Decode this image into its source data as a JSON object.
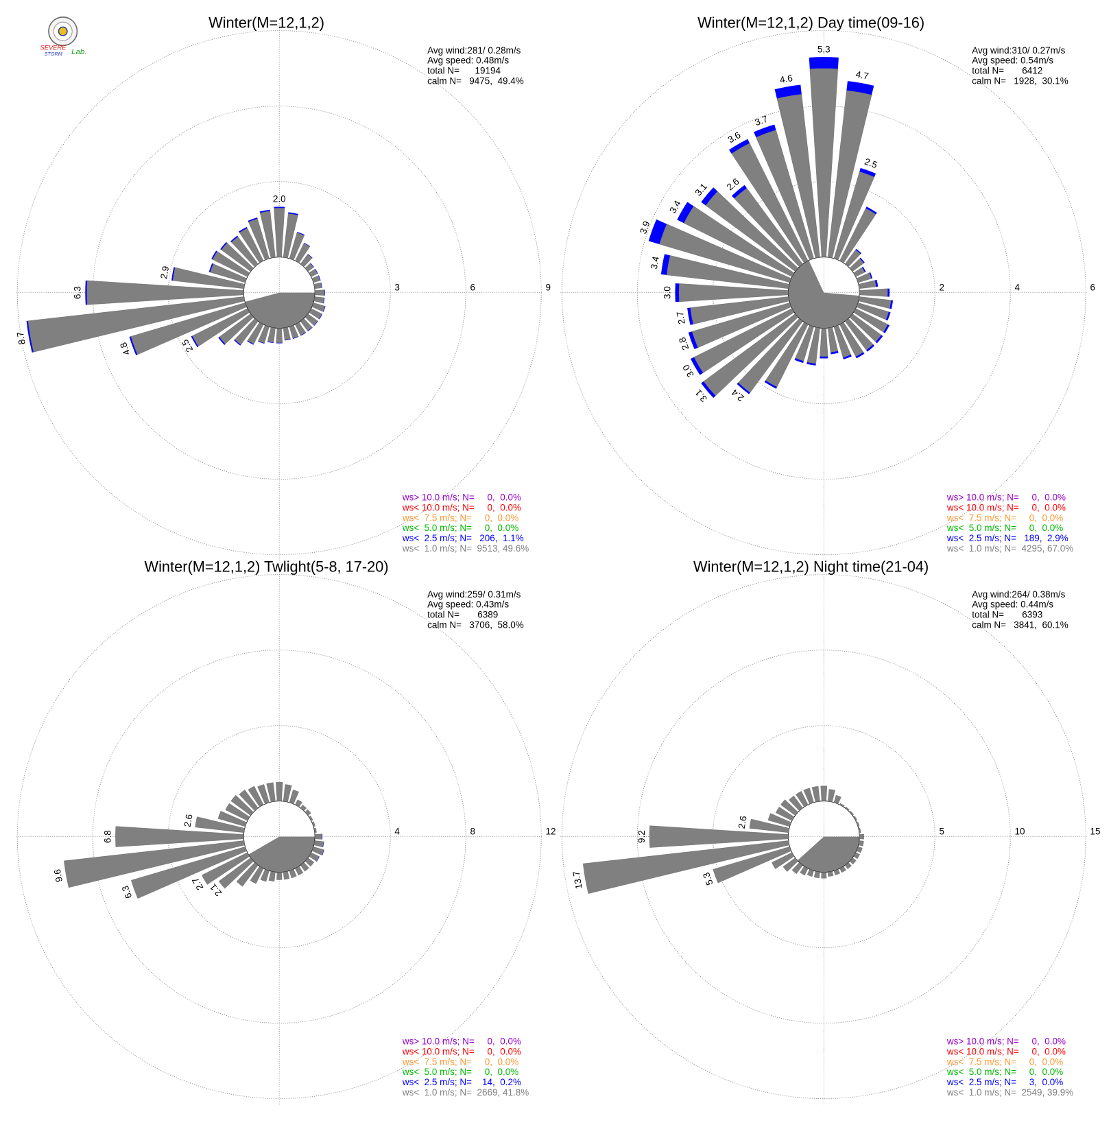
{
  "logo": {
    "line1": "SEVERE",
    "line2": "STORM",
    "line3": "Lab."
  },
  "chart_data": [
    {
      "type": "polar",
      "title": "Winter(M=12,1,2)",
      "directions": [
        0,
        10,
        20,
        30,
        40,
        50,
        60,
        70,
        80,
        90,
        100,
        110,
        120,
        130,
        140,
        150,
        160,
        170,
        180,
        190,
        200,
        210,
        220,
        230,
        240,
        250,
        260,
        270,
        280,
        290,
        300,
        310,
        320,
        330,
        340,
        350
      ],
      "rlim": [
        0,
        9
      ],
      "rticks": [
        3,
        6,
        9
      ],
      "series": [
        {
          "color": "#808080",
          "values": [
            1.95,
            1.75,
            1.07,
            0.78,
            0.48,
            0.28,
            0.28,
            0.28,
            0.28,
            0.38,
            0.38,
            0.48,
            0.48,
            0.48,
            0.48,
            0.48,
            0.48,
            0.48,
            0.58,
            0.58,
            0.68,
            0.87,
            1.16,
            1.55,
            2.45,
            4.74,
            8.64,
            6.24,
            2.85,
            1.45,
            1.55,
            1.45,
            1.35,
            1.45,
            1.65,
            1.85
          ]
        },
        {
          "color": "#0000ff",
          "values": [
            0.05,
            0.05,
            0.03,
            0.02,
            0.02,
            0.02,
            0.02,
            0.02,
            0.02,
            0.02,
            0.02,
            0.02,
            0.02,
            0.02,
            0.02,
            0.02,
            0.02,
            0.02,
            0.02,
            0.02,
            0.02,
            0.03,
            0.04,
            0.05,
            0.05,
            0.06,
            0.06,
            0.06,
            0.05,
            0.05,
            0.05,
            0.05,
            0.05,
            0.05,
            0.05,
            0.05
          ]
        }
      ],
      "bar_labels": [
        "2.0",
        null,
        null,
        null,
        null,
        null,
        null,
        null,
        null,
        null,
        null,
        null,
        null,
        null,
        null,
        null,
        null,
        null,
        null,
        null,
        null,
        null,
        null,
        null,
        "2.5",
        "4.8",
        "8.7",
        "6.3",
        "2.9",
        null,
        null,
        null,
        null,
        null,
        null,
        null
      ],
      "info": [
        "Avg wind:281/ 0.28m/s",
        "Avg speed: 0.48m/s",
        "total N=      19194",
        "calm N=   9475,  49.4%"
      ],
      "legend": [
        {
          "text": "ws> 10.0 m/s; N=     0,  0.0%",
          "color": "#9900cc"
        },
        {
          "text": "ws< 10.0 m/s; N=     0,  0.0%",
          "color": "#ff0000"
        },
        {
          "text": "ws<  7.5 m/s; N=     0,  0.0%",
          "color": "#ff9933"
        },
        {
          "text": "ws<  5.0 m/s; N=     0,  0.0%",
          "color": "#00bb00"
        },
        {
          "text": "ws<  2.5 m/s; N=   206,  1.1%",
          "color": "#0000ff"
        },
        {
          "text": "ws<  1.0 m/s; N=  9513, 49.6%",
          "color": "#808080"
        }
      ]
    },
    {
      "type": "polar",
      "title": "Winter(M=12,1,2) Day time(09-16)",
      "directions": [
        0,
        10,
        20,
        30,
        40,
        50,
        60,
        70,
        80,
        90,
        100,
        110,
        120,
        130,
        140,
        150,
        160,
        170,
        180,
        190,
        200,
        210,
        220,
        230,
        240,
        250,
        260,
        270,
        280,
        290,
        300,
        310,
        320,
        330,
        340,
        350
      ],
      "rlim": [
        0,
        6
      ],
      "rticks": [
        2,
        4,
        6
      ],
      "series": [
        {
          "color": "#808080",
          "values": [
            5.0,
            4.45,
            2.4,
            1.55,
            0.47,
            0.37,
            0.27,
            0.37,
            0.45,
            0.75,
            0.85,
            0.85,
            0.95,
            0.95,
            0.95,
            0.95,
            0.85,
            0.65,
            0.75,
            0.95,
            0.95,
            1.85,
            2.35,
            3.02,
            2.9,
            2.7,
            2.62,
            2.9,
            3.25,
            3.6,
            3.2,
            2.95,
            2.5,
            3.48,
            3.55,
            4.35
          ]
        },
        {
          "color": "#0000ff",
          "values": [
            0.3,
            0.25,
            0.1,
            0.05,
            0.03,
            0.03,
            0.03,
            0.03,
            0.05,
            0.05,
            0.05,
            0.05,
            0.05,
            0.05,
            0.05,
            0.05,
            0.05,
            0.05,
            0.05,
            0.05,
            0.05,
            0.05,
            0.05,
            0.08,
            0.1,
            0.1,
            0.08,
            0.1,
            0.15,
            0.3,
            0.2,
            0.15,
            0.1,
            0.12,
            0.15,
            0.25
          ]
        }
      ],
      "bar_labels": [
        "5.3",
        "4.7",
        "2.5",
        null,
        null,
        null,
        null,
        null,
        null,
        null,
        null,
        null,
        null,
        null,
        null,
        null,
        null,
        null,
        null,
        null,
        null,
        null,
        "2.4",
        "3.1",
        "3.0",
        "2.8",
        "2.7",
        "3.0",
        "3.4",
        "3.9",
        "3.4",
        "3.1",
        "2.6",
        "3.6",
        "3.7",
        "4.6"
      ],
      "info": [
        "Avg wind:310/ 0.27m/s",
        "Avg speed: 0.54m/s",
        "total N=       6412",
        "calm N=   1928,  30.1%"
      ],
      "legend": [
        {
          "text": "ws> 10.0 m/s; N=     0,  0.0%",
          "color": "#9900cc"
        },
        {
          "text": "ws< 10.0 m/s; N=     0,  0.0%",
          "color": "#ff0000"
        },
        {
          "text": "ws<  7.5 m/s; N=     0,  0.0%",
          "color": "#ff9933"
        },
        {
          "text": "ws<  5.0 m/s; N=     0,  0.0%",
          "color": "#00bb00"
        },
        {
          "text": "ws<  2.5 m/s; N=   189,  2.9%",
          "color": "#0000ff"
        },
        {
          "text": "ws<  1.0 m/s; N=  4295, 67.0%",
          "color": "#808080"
        }
      ]
    },
    {
      "type": "polar",
      "title": "Winter(M=12,1,2) Twlight(5-8, 17-20)",
      "directions": [
        0,
        10,
        20,
        30,
        40,
        50,
        60,
        70,
        80,
        90,
        100,
        110,
        120,
        130,
        140,
        150,
        160,
        170,
        180,
        190,
        200,
        210,
        220,
        230,
        240,
        250,
        260,
        270,
        280,
        290,
        300,
        310,
        320,
        330,
        340,
        350
      ],
      "rlim": [
        0,
        12
      ],
      "rticks": [
        4,
        8,
        12
      ],
      "series": [
        {
          "color": "#808080",
          "values": [
            1.0,
            0.9,
            0.7,
            0.3,
            0.2,
            0.2,
            0.1,
            0.1,
            0.1,
            0.38,
            0.48,
            0.58,
            0.48,
            0.4,
            0.4,
            0.4,
            0.4,
            0.4,
            0.4,
            0.5,
            0.6,
            0.9,
            1.4,
            2.1,
            2.7,
            6.3,
            9.6,
            6.8,
            2.6,
            1.5,
            1.3,
            1.3,
            1.2,
            1.1,
            1.0,
            1.0
          ]
        },
        {
          "color": "#0000ff",
          "values": [
            0,
            0,
            0,
            0,
            0,
            0,
            0,
            0,
            0,
            0.02,
            0.02,
            0.02,
            0.02,
            0,
            0,
            0,
            0,
            0,
            0,
            0,
            0,
            0,
            0,
            0,
            0,
            0,
            0,
            0,
            0,
            0,
            0,
            0,
            0,
            0,
            0,
            0
          ]
        }
      ],
      "bar_labels": [
        null,
        null,
        null,
        null,
        null,
        null,
        null,
        null,
        null,
        null,
        null,
        null,
        null,
        null,
        null,
        null,
        null,
        null,
        null,
        null,
        null,
        null,
        null,
        "2.1",
        "2.7",
        "6.3",
        "9.6",
        "6.8",
        "2.6",
        null,
        null,
        null,
        null,
        null,
        null,
        null
      ],
      "info": [
        "Avg wind:259/ 0.31m/s",
        "Avg speed: 0.43m/s",
        "total N=       6389",
        "calm N=   3706,  58.0%"
      ],
      "legend": [
        {
          "text": "ws> 10.0 m/s; N=     0,  0.0%",
          "color": "#9900cc"
        },
        {
          "text": "ws< 10.0 m/s; N=     0,  0.0%",
          "color": "#ff0000"
        },
        {
          "text": "ws<  7.5 m/s; N=     0,  0.0%",
          "color": "#ff9933"
        },
        {
          "text": "ws<  5.0 m/s; N=     0,  0.0%",
          "color": "#00bb00"
        },
        {
          "text": "ws<  2.5 m/s; N=    14,  0.2%",
          "color": "#0000ff"
        },
        {
          "text": "ws<  1.0 m/s; N=  2669, 41.8%",
          "color": "#808080"
        }
      ]
    },
    {
      "type": "polar",
      "title": "Winter(M=12,1,2) Night time(21-04)",
      "directions": [
        0,
        10,
        20,
        30,
        40,
        50,
        60,
        70,
        80,
        90,
        100,
        110,
        120,
        130,
        140,
        150,
        160,
        170,
        180,
        190,
        200,
        210,
        220,
        230,
        240,
        250,
        260,
        270,
        280,
        290,
        300,
        310,
        320,
        330,
        340,
        350
      ],
      "rlim": [
        0,
        15
      ],
      "rticks": [
        5,
        10,
        15
      ],
      "series": [
        {
          "color": "#808080",
          "values": [
            1.0,
            0.8,
            0.5,
            0.1,
            0.1,
            0.1,
            0.1,
            0.1,
            0.1,
            0.3,
            0.3,
            0.3,
            0.3,
            0.3,
            0.3,
            0.3,
            0.3,
            0.3,
            0.4,
            0.4,
            0.4,
            0.5,
            0.7,
            1.0,
            1.5,
            5.3,
            13.7,
            9.2,
            2.6,
            1.5,
            1.2,
            1.2,
            1.0,
            1.0,
            1.0,
            1.0
          ]
        },
        {
          "color": "#0000ff",
          "values": [
            0,
            0,
            0,
            0,
            0,
            0,
            0,
            0,
            0,
            0,
            0,
            0,
            0,
            0,
            0,
            0,
            0,
            0,
            0,
            0,
            0,
            0,
            0,
            0,
            0,
            0,
            0,
            0,
            0,
            0,
            0,
            0,
            0,
            0,
            0,
            0
          ]
        }
      ],
      "bar_labels": [
        null,
        null,
        null,
        null,
        null,
        null,
        null,
        null,
        null,
        null,
        null,
        null,
        null,
        null,
        null,
        null,
        null,
        null,
        null,
        null,
        null,
        null,
        null,
        null,
        null,
        "5.3",
        "13.7",
        "9.2",
        "2.6",
        null,
        null,
        null,
        null,
        null,
        null,
        null
      ],
      "info": [
        "Avg wind:264/ 0.38m/s",
        "Avg speed: 0.44m/s",
        "total N=       6393",
        "calm N=   3841,  60.1%"
      ],
      "legend": [
        {
          "text": "ws> 10.0 m/s; N=     0,  0.0%",
          "color": "#9900cc"
        },
        {
          "text": "ws< 10.0 m/s; N=     0,  0.0%",
          "color": "#ff0000"
        },
        {
          "text": "ws<  7.5 m/s; N=     0,  0.0%",
          "color": "#ff9933"
        },
        {
          "text": "ws<  5.0 m/s; N=     0,  0.0%",
          "color": "#00bb00"
        },
        {
          "text": "ws<  2.5 m/s; N=     3,  0.0%",
          "color": "#0000ff"
        },
        {
          "text": "ws<  1.0 m/s; N=  2549, 39.9%",
          "color": "#808080"
        }
      ]
    }
  ]
}
